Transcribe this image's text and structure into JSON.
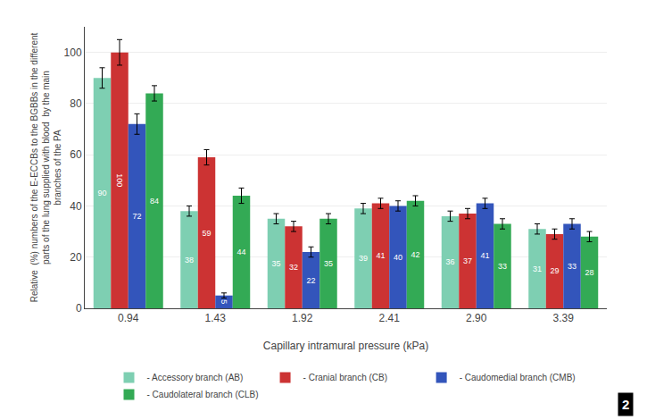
{
  "chart_data": {
    "type": "bar",
    "categories": [
      "0.94",
      "1.43",
      "1.92",
      "2.41",
      "2.90",
      "3.39"
    ],
    "xlabel": "Capillary intramural pressure (kPa)",
    "ylabel": "Relative  (%) numbers of the E-ECCBs to the BGBBs in the different\nparts of the lung supplied with blood  by the main\nbranches of the PA",
    "series": [
      {
        "name": "- Accessory branch (AB)",
        "color": "#7ECFB2",
        "values": [
          90,
          38,
          35,
          39,
          36,
          31
        ],
        "errors": [
          4,
          2,
          2,
          2,
          2,
          2
        ]
      },
      {
        "name": "- Cranial branch (CB)",
        "color": "#CC3333",
        "values": [
          100,
          59,
          32,
          41,
          37,
          29
        ],
        "errors": [
          5,
          3,
          2,
          2,
          2,
          2
        ]
      },
      {
        "name": "- Caudomedial branch (CMB)",
        "color": "#3355BB",
        "values": [
          72,
          5,
          22,
          40,
          41,
          33
        ],
        "errors": [
          4,
          1,
          2,
          2,
          2,
          2
        ]
      },
      {
        "name": "- Caudolateral branch (CLB)",
        "color": "#33AA55",
        "values": [
          84,
          44,
          35,
          42,
          33,
          28
        ],
        "errors": [
          3,
          3,
          2,
          2,
          2,
          2
        ]
      }
    ],
    "ylim": [
      0,
      110
    ],
    "yticks": [
      0,
      20,
      40,
      60,
      80,
      100
    ],
    "grid": true,
    "legend": "bottom",
    "data_labels": true,
    "annotations": [
      {
        "text": "2"
      }
    ]
  }
}
